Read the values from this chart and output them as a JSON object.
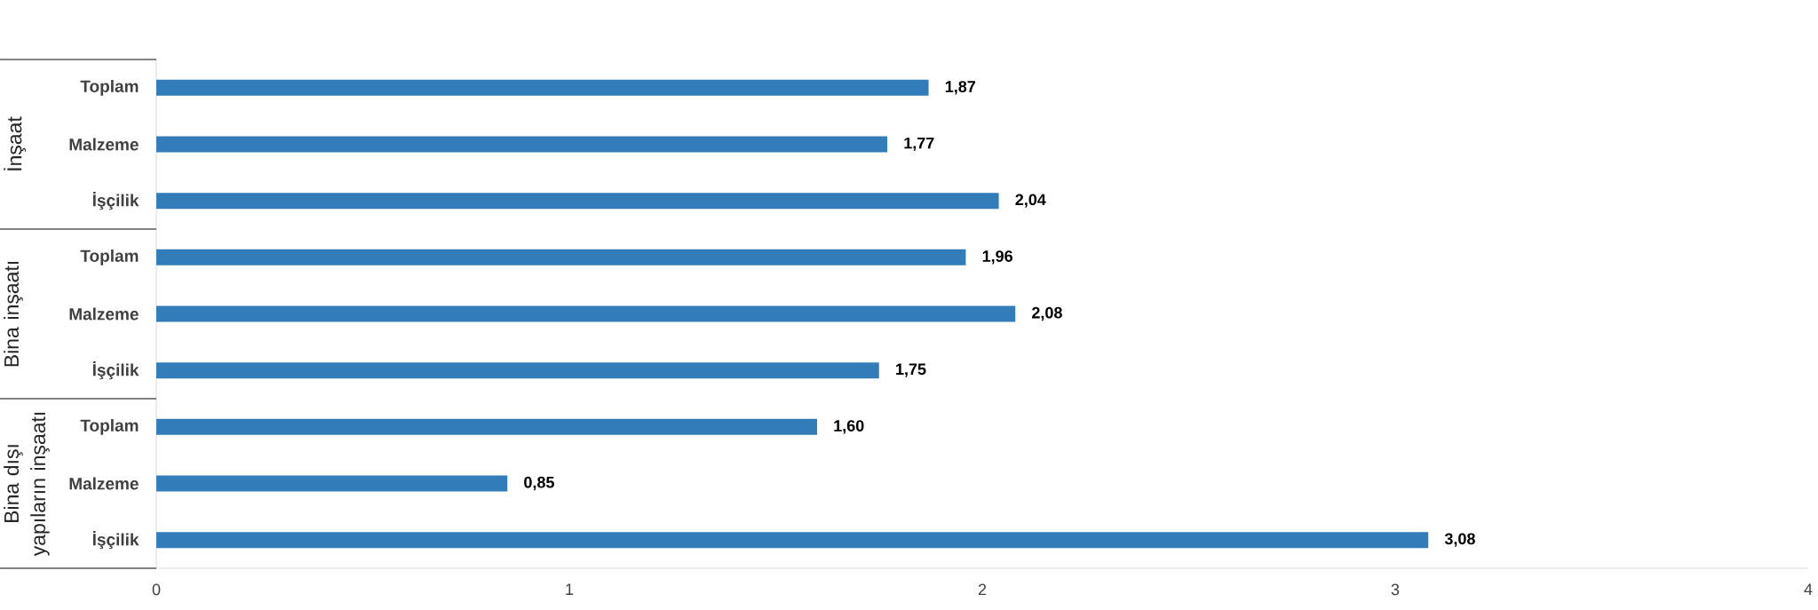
{
  "chart_data": {
    "type": "bar",
    "orientation": "horizontal",
    "categories": [
      "Toplam",
      "Malzeme",
      "İşçilik",
      "Toplam",
      "Malzeme",
      "İşçilik",
      "Toplam",
      "Malzeme",
      "İşçilik"
    ],
    "values": [
      1.87,
      1.77,
      2.04,
      1.96,
      2.08,
      1.75,
      1.6,
      0.85,
      3.08
    ],
    "value_labels": [
      "1,87",
      "1,77",
      "2,04",
      "1,96",
      "2,08",
      "1,75",
      "1,60",
      "0,85",
      "3,08"
    ],
    "color": "#327cba",
    "xlim": [
      0,
      4
    ],
    "xticks": [
      0,
      1,
      2,
      3,
      4
    ],
    "annotations": [
      "İnşaat",
      "Bina inşaatı",
      "Bina dışı yapıların inşaatı"
    ]
  }
}
